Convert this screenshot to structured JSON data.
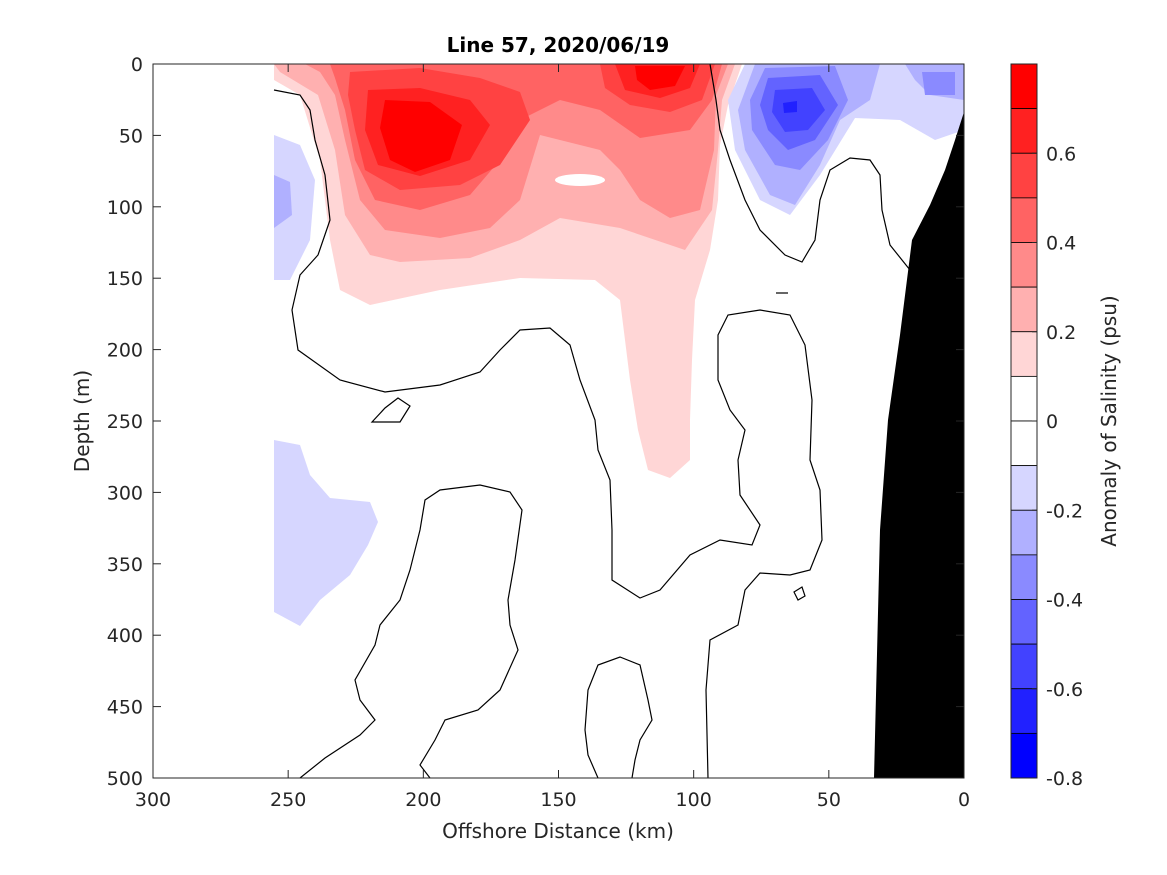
{
  "chart_data": {
    "type": "heatmap",
    "title": "Line 57, 2020/06/19",
    "xlabel": "Offshore Distance (km)",
    "ylabel": "Depth (m)",
    "colorbar_label": "Anomaly of Salinity (psu)",
    "xlim": [
      300,
      0
    ],
    "ylim": [
      0,
      500
    ],
    "x_ticks": [
      "300",
      "250",
      "200",
      "150",
      "100",
      "50",
      "0"
    ],
    "y_ticks": [
      "0",
      "50",
      "100",
      "150",
      "200",
      "250",
      "300",
      "350",
      "400",
      "450",
      "500"
    ],
    "colorbar_range": [
      -0.8,
      0.8
    ],
    "colorbar_ticks": [
      "0.6",
      "0.4",
      "0.2",
      "0",
      "-0.2",
      "-0.4",
      "-0.6",
      "-0.8"
    ],
    "colorbar_levels": [
      {
        "low": 0.7,
        "high": 0.8,
        "color": "#ff0000"
      },
      {
        "low": 0.6,
        "high": 0.7,
        "color": "#ff2121"
      },
      {
        "low": 0.5,
        "high": 0.6,
        "color": "#ff4242"
      },
      {
        "low": 0.4,
        "high": 0.5,
        "color": "#ff6363"
      },
      {
        "low": 0.3,
        "high": 0.4,
        "color": "#ff8a8a"
      },
      {
        "low": 0.2,
        "high": 0.3,
        "color": "#ffb0b0"
      },
      {
        "low": 0.1,
        "high": 0.2,
        "color": "#ffd6d6"
      },
      {
        "low": 0.0,
        "high": 0.1,
        "color": "#ffffff"
      },
      {
        "low": -0.1,
        "high": 0.0,
        "color": "#ffffff"
      },
      {
        "low": -0.2,
        "high": -0.1,
        "color": "#d6d6ff"
      },
      {
        "low": -0.3,
        "high": -0.2,
        "color": "#b0b0ff"
      },
      {
        "low": -0.4,
        "high": -0.3,
        "color": "#8a8aff"
      },
      {
        "low": -0.5,
        "high": -0.4,
        "color": "#6363ff"
      },
      {
        "low": -0.6,
        "high": -0.5,
        "color": "#4242ff"
      },
      {
        "low": -0.7,
        "high": -0.6,
        "color": "#2121ff"
      },
      {
        "low": -0.8,
        "high": -0.7,
        "color": "#0000ff"
      }
    ],
    "bathymetry_color": "#000000",
    "grid": false
  }
}
